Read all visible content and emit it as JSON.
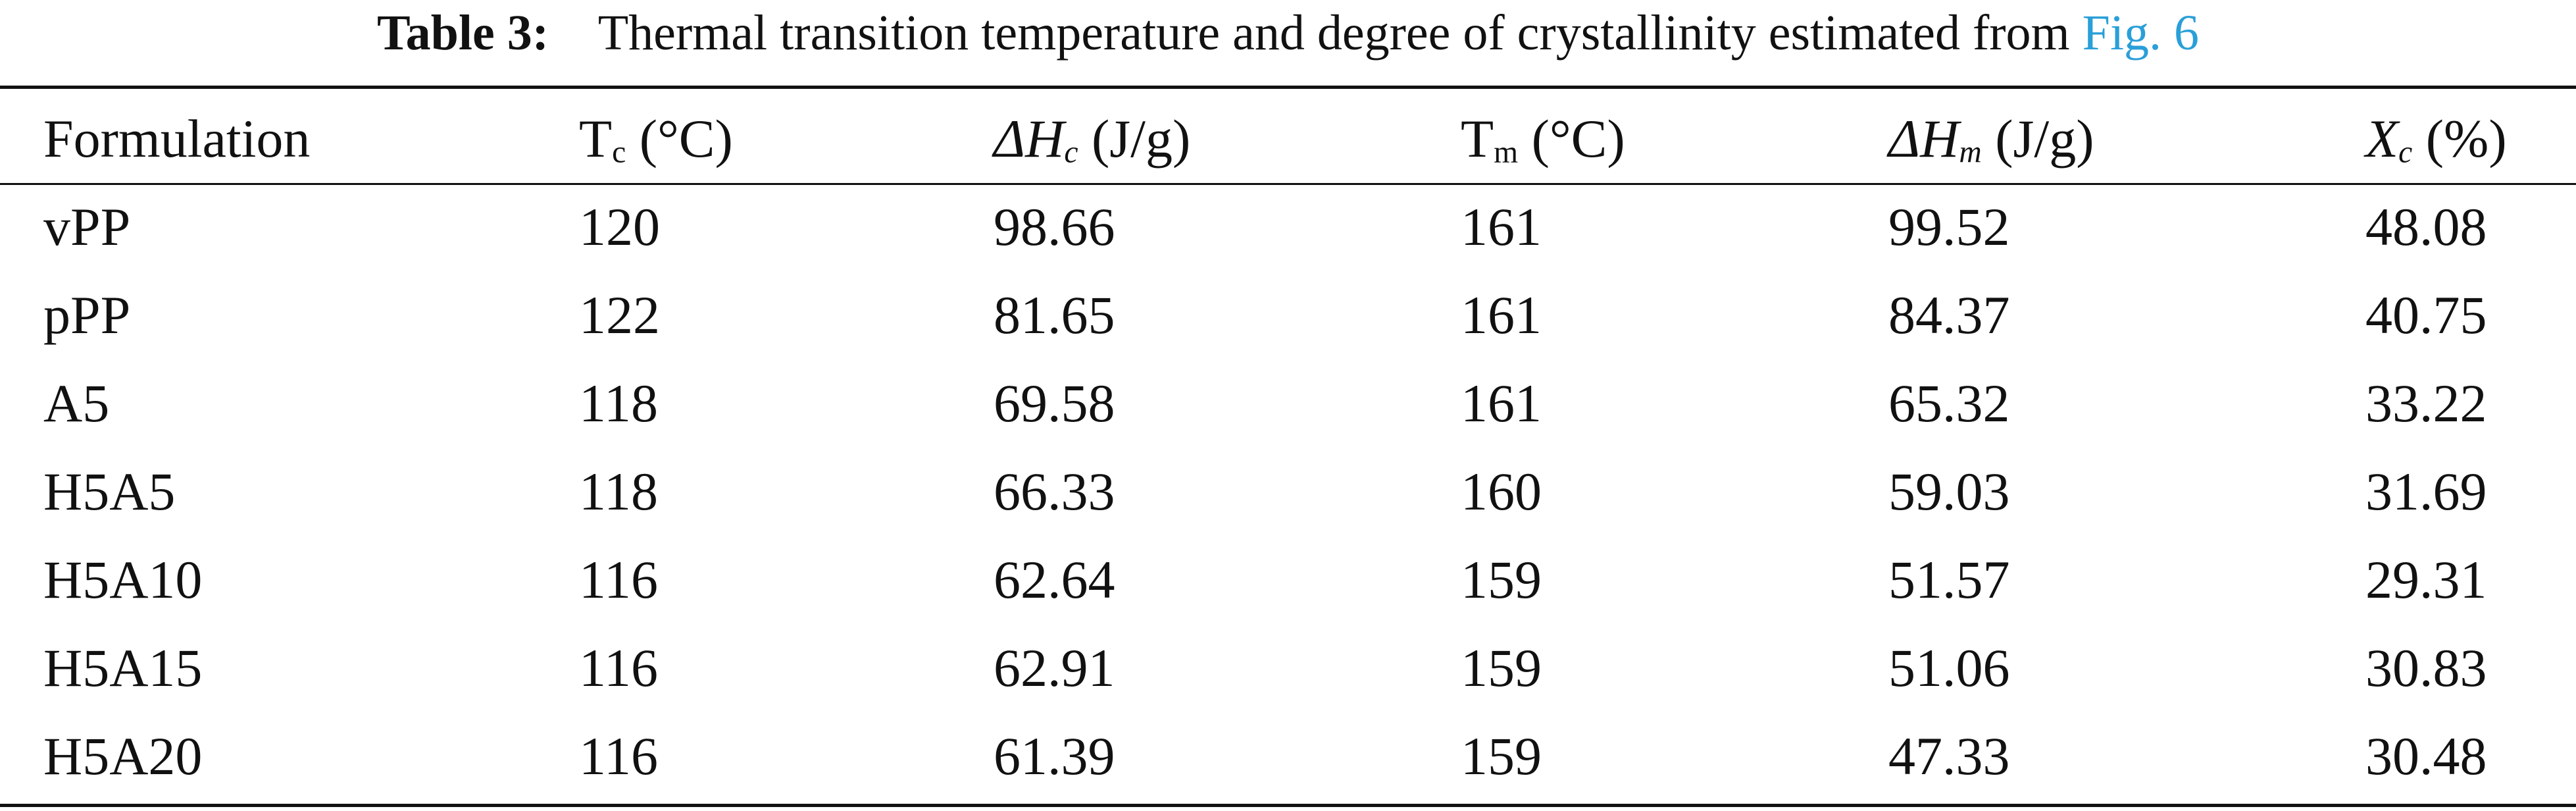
{
  "caption": {
    "label": "Table 3:",
    "text": "Thermal transition temperature and degree of crystallinity estimated from",
    "link": "Fig. 6"
  },
  "table": {
    "headers": [
      {
        "main": "Formulation",
        "sub": "",
        "unit": ""
      },
      {
        "main": "T",
        "sub": "c",
        "unit": "(°C)"
      },
      {
        "main": "ΔH",
        "sub": "c",
        "unit": "(J/g)"
      },
      {
        "main": "T",
        "sub": "m",
        "unit": "(°C)"
      },
      {
        "main": "ΔH",
        "sub": "m",
        "unit": "(J/g)"
      },
      {
        "main": "X",
        "sub": "c",
        "unit": "(%)"
      }
    ],
    "rows": [
      [
        "vPP",
        "120",
        "98.66",
        "161",
        "99.52",
        "48.08"
      ],
      [
        "pPP",
        "122",
        "81.65",
        "161",
        "84.37",
        "40.75"
      ],
      [
        "A5",
        "118",
        "69.58",
        "161",
        "65.32",
        "33.22"
      ],
      [
        "H5A5",
        "118",
        "66.33",
        "160",
        "59.03",
        "31.69"
      ],
      [
        "H5A10",
        "116",
        "62.64",
        "159",
        "51.57",
        "29.31"
      ],
      [
        "H5A15",
        "116",
        "62.91",
        "159",
        "51.06",
        "30.83"
      ],
      [
        "H5A20",
        "116",
        "61.39",
        "159",
        "47.33",
        "30.48"
      ]
    ]
  }
}
